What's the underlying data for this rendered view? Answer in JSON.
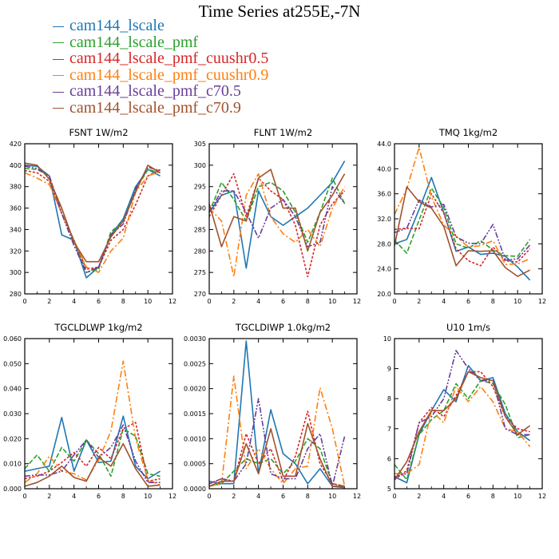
{
  "title": "Time Series at255E,-7N",
  "legend": [
    {
      "label": "cam144_lscale",
      "color": "#1f77b4"
    },
    {
      "label": "cam144_lscale_pmf",
      "color": "#2ca02c"
    },
    {
      "label": "cam144_lscale_pmf_cuushr0.5",
      "color": "#d62728"
    },
    {
      "label": "cam144_lscale_pmf_cuushr0.9",
      "color": "#ff7f0e"
    },
    {
      "label": "cam144_lscale_pmf_c70.5",
      "color": "#6a3d9a"
    },
    {
      "label": "cam144_lscale_pmf_c70.9",
      "color": "#a0522d"
    }
  ],
  "chart_data": [
    {
      "type": "line",
      "title": "FSNT   1W/m2",
      "x": [
        0,
        1,
        2,
        3,
        4,
        5,
        6,
        7,
        8,
        9,
        10,
        11
      ],
      "xlim": [
        0,
        12
      ],
      "xticks": [
        "0",
        "2",
        "4",
        "6",
        "8",
        "10",
        "12"
      ],
      "ylim": [
        280,
        420
      ],
      "yticks": [
        "280",
        "300",
        "320",
        "340",
        "360",
        "380",
        "400",
        "420"
      ],
      "series": [
        {
          "name": "cam144_lscale",
          "values": [
            400,
            399,
            390,
            335,
            330,
            295,
            305,
            335,
            350,
            380,
            396,
            390
          ]
        },
        {
          "name": "cam144_lscale_pmf",
          "values": [
            397,
            396,
            390,
            355,
            330,
            300,
            303,
            338,
            347,
            377,
            396,
            393
          ]
        },
        {
          "name": "cam144_lscale_pmf_cuushr0.5",
          "values": [
            395,
            393,
            385,
            355,
            330,
            303,
            305,
            330,
            340,
            363,
            390,
            396
          ]
        },
        {
          "name": "cam144_lscale_pmf_cuushr0.9",
          "values": [
            393,
            388,
            382,
            355,
            330,
            305,
            300,
            320,
            332,
            375,
            390,
            394
          ]
        },
        {
          "name": "cam144_lscale_pmf_c70.5",
          "values": [
            399,
            397,
            390,
            355,
            325,
            300,
            305,
            335,
            345,
            378,
            398,
            395
          ]
        },
        {
          "name": "cam144_lscale_pmf_c70.9",
          "values": [
            402,
            400,
            387,
            360,
            328,
            310,
            310,
            333,
            348,
            375,
            400,
            393
          ]
        }
      ]
    },
    {
      "type": "line",
      "title": "FLNT   1W/m2",
      "x": [
        0,
        1,
        2,
        3,
        4,
        5,
        6,
        7,
        8,
        9,
        10,
        11
      ],
      "xlim": [
        0,
        12
      ],
      "xticks": [
        "0",
        "2",
        "4",
        "6",
        "8",
        "10",
        "12"
      ],
      "ylim": [
        270,
        305
      ],
      "yticks": [
        "270",
        "275",
        "280",
        "285",
        "290",
        "295",
        "300",
        "305"
      ],
      "series": [
        {
          "name": "cam144_lscale",
          "values": [
            289,
            293,
            294,
            276,
            294,
            288,
            286,
            288,
            290,
            293,
            296,
            301
          ]
        },
        {
          "name": "cam144_lscale_pmf",
          "values": [
            289,
            296,
            292,
            287,
            295,
            296,
            294,
            289,
            282,
            289,
            297,
            291
          ]
        },
        {
          "name": "cam144_lscale_pmf_cuushr0.5",
          "values": [
            288,
            293,
            298,
            288,
            297,
            294,
            292,
            286,
            274,
            286,
            291,
            294
          ]
        },
        {
          "name": "cam144_lscale_pmf_cuushr0.9",
          "values": [
            290,
            287,
            274,
            293,
            298,
            288,
            284,
            282,
            285,
            281,
            290,
            295
          ]
        },
        {
          "name": "cam144_lscale_pmf_c70.5",
          "values": [
            289,
            294,
            294,
            289,
            283,
            290,
            292,
            288,
            281,
            282,
            295,
            291
          ]
        },
        {
          "name": "cam144_lscale_pmf_c70.9",
          "values": [
            291,
            281,
            288,
            287,
            297,
            299,
            290,
            290,
            280,
            289,
            293,
            298
          ]
        }
      ]
    },
    {
      "type": "line",
      "title": "TMQ   1kg/m2",
      "x": [
        0,
        1,
        2,
        3,
        4,
        5,
        6,
        7,
        8,
        9,
        10,
        11
      ],
      "xlim": [
        0,
        12
      ],
      "xticks": [
        "0",
        "2",
        "4",
        "6",
        "8",
        "10",
        "12"
      ],
      "ylim": [
        20,
        44
      ],
      "yticks": [
        "20.0",
        "24.0",
        "28.0",
        "32.0",
        "36.0",
        "40.0",
        "44.0"
      ],
      "series": [
        {
          "name": "cam144_lscale",
          "values": [
            28,
            28.7,
            33.5,
            38.6,
            33,
            26.8,
            27.5,
            26.3,
            26.5,
            26,
            24.3,
            22.2
          ]
        },
        {
          "name": "cam144_lscale_pmf",
          "values": [
            28.6,
            26.5,
            31.8,
            36.9,
            33.8,
            28,
            27.3,
            28.5,
            27,
            26.1,
            26,
            28.7
          ]
        },
        {
          "name": "cam144_lscale_pmf_cuushr0.5",
          "values": [
            30.3,
            30.5,
            30.4,
            36,
            32.9,
            27.2,
            25.3,
            24.5,
            27.5,
            25.3,
            25.1,
            27.2
          ]
        },
        {
          "name": "cam144_lscale_pmf_cuushr0.9",
          "values": [
            32.7,
            36.8,
            43.4,
            35.5,
            31,
            29.2,
            27.5,
            27.7,
            28.5,
            24.7,
            24.8,
            25.6
          ]
        },
        {
          "name": "cam144_lscale_pmf_c70.5",
          "values": [
            29.8,
            30.5,
            35,
            33.9,
            34.3,
            29.1,
            28.1,
            28,
            31.1,
            25.4,
            25.6,
            27.8
          ]
        },
        {
          "name": "cam144_lscale_pmf_c70.9",
          "values": [
            27.7,
            37.1,
            34.7,
            33.7,
            30.8,
            24.5,
            26.9,
            26.8,
            26.9,
            24.2,
            22.8,
            23.8
          ]
        }
      ]
    },
    {
      "type": "line",
      "title": "TGCLDLWP   1kg/m2",
      "x": [
        0,
        1,
        2,
        3,
        4,
        5,
        6,
        7,
        8,
        9,
        10,
        11
      ],
      "xlim": [
        0,
        12
      ],
      "xticks": [
        "0",
        "2",
        "4",
        "6",
        "8",
        "10",
        "12"
      ],
      "ylim": [
        0,
        0.06
      ],
      "yticks": [
        "0.000",
        "0.010",
        "0.020",
        "0.030",
        "0.040",
        "0.050",
        "0.060"
      ],
      "series": [
        {
          "name": "cam144_lscale",
          "values": [
            0.007,
            0.008,
            0.009,
            0.0285,
            0.007,
            0.0195,
            0.0105,
            0.011,
            0.029,
            0.009,
            0.004,
            0.007
          ]
        },
        {
          "name": "cam144_lscale_pmf",
          "values": [
            0.008,
            0.0135,
            0.007,
            0.0165,
            0.011,
            0.0195,
            0.014,
            0.005,
            0.024,
            0.021,
            0.006,
            0.005
          ]
        },
        {
          "name": "cam144_lscale_pmf_cuushr0.5",
          "values": [
            0.004,
            0.005,
            0.007,
            0.0105,
            0.0145,
            0.009,
            0.0165,
            0.012,
            0.024,
            0.0265,
            0.003,
            0.004
          ]
        },
        {
          "name": "cam144_lscale_pmf_cuushr0.9",
          "values": [
            0.0025,
            0.006,
            0.013,
            0.007,
            0.006,
            0.0035,
            0.0115,
            0.023,
            0.051,
            0.02,
            0.0035,
            0.0015
          ]
        },
        {
          "name": "cam144_lscale_pmf_c70.5",
          "values": [
            0.005,
            0.0055,
            0.0055,
            0.007,
            0.0135,
            0.0195,
            0.0125,
            0.0165,
            0.0255,
            0.011,
            0.0025,
            0.0025
          ]
        },
        {
          "name": "cam144_lscale_pmf_c70.9",
          "values": [
            0.001,
            0.0025,
            0.005,
            0.009,
            0.0045,
            0.003,
            0.0125,
            0.009,
            0.018,
            0.008,
            0.001,
            0.0015
          ]
        }
      ]
    },
    {
      "type": "line",
      "title": "TGCLDIWP   1.0kg/m2",
      "x": [
        0,
        1,
        2,
        3,
        4,
        5,
        6,
        7,
        8,
        9,
        10,
        11
      ],
      "xlim": [
        0,
        12
      ],
      "xticks": [
        "0",
        "2",
        "4",
        "6",
        "8",
        "10",
        "12"
      ],
      "ylim": [
        0,
        0.003
      ],
      "yticks": [
        "0.0000",
        "0.0005",
        "0.0010",
        "0.0015",
        "0.0020",
        "0.0025",
        "0.0030"
      ],
      "series": [
        {
          "name": "cam144_lscale",
          "values": [
            0.00015,
            0.0001,
            0.0001,
            0.00295,
            0.0003,
            0.00158,
            0.0007,
            0.0005,
            0.0001,
            0.0004,
            5e-05,
            2e-05
          ]
        },
        {
          "name": "cam144_lscale_pmf",
          "values": [
            5e-05,
            0.0001,
            0.00035,
            0.0006,
            0.0005,
            0.0006,
            0.0003,
            0.00055,
            0.001,
            0.0008,
            0.0001,
            5e-05
          ]
        },
        {
          "name": "cam144_lscale_pmf_cuushr0.5",
          "values": [
            0.0001,
            0.0002,
            0.00015,
            0.0011,
            0.0005,
            0.0008,
            0.00015,
            0.00065,
            0.00155,
            0.0005,
            0.0001,
            5e-05
          ]
        },
        {
          "name": "cam144_lscale_pmf_cuushr0.9",
          "values": [
            5e-05,
            0.0001,
            0.00225,
            0.0004,
            0.0008,
            0.0004,
            0.0001,
            0.0004,
            0.00045,
            0.00202,
            0.0012,
            5e-05
          ]
        },
        {
          "name": "cam144_lscale_pmf_c70.5",
          "values": [
            0.0001,
            0.0002,
            0.00015,
            0.0005,
            0.0018,
            0.0003,
            0.0002,
            0.0002,
            0.0008,
            0.0011,
            5e-05,
            0.00105
          ]
        },
        {
          "name": "cam144_lscale_pmf_c70.9",
          "values": [
            5e-05,
            0.00015,
            0.00015,
            0.0009,
            0.0003,
            0.0012,
            0.00025,
            0.00025,
            0.0013,
            0.0006,
            5e-05,
            5e-05
          ]
        }
      ]
    },
    {
      "type": "line",
      "title": "U10   1m/s",
      "x": [
        0,
        1,
        2,
        3,
        4,
        5,
        6,
        7,
        8,
        9,
        10,
        11
      ],
      "xlim": [
        0,
        12
      ],
      "xticks": [
        "0",
        "2",
        "4",
        "6",
        "8",
        "10",
        "12"
      ],
      "ylim": [
        5,
        10
      ],
      "yticks": [
        "5",
        "6",
        "7",
        "8",
        "9",
        "10"
      ],
      "series": [
        {
          "name": "cam144_lscale",
          "values": [
            5.4,
            5.2,
            6.8,
            7.6,
            8.3,
            7.9,
            9.1,
            8.6,
            8.7,
            7.5,
            6.9,
            6.6
          ]
        },
        {
          "name": "cam144_lscale_pmf",
          "values": [
            5.8,
            5.3,
            6.8,
            7.3,
            7.6,
            8.5,
            8.0,
            8.6,
            8.5,
            7.8,
            6.7,
            6.8
          ]
        },
        {
          "name": "cam144_lscale_pmf_cuushr0.5",
          "values": [
            5.3,
            5.6,
            7.2,
            7.7,
            7.4,
            8.1,
            8.9,
            8.9,
            8.4,
            7.4,
            7.0,
            6.9
          ]
        },
        {
          "name": "cam144_lscale_pmf_cuushr0.9",
          "values": [
            5.5,
            5.5,
            5.8,
            7.6,
            7.2,
            8.4,
            7.9,
            8.4,
            7.9,
            7.0,
            6.9,
            6.4
          ]
        },
        {
          "name": "cam144_lscale_pmf_c70.5",
          "values": [
            5.4,
            5.5,
            7.2,
            7.4,
            8.0,
            9.6,
            9.0,
            8.6,
            8.6,
            7.0,
            6.8,
            6.8
          ]
        },
        {
          "name": "cam144_lscale_pmf_c70.9",
          "values": [
            5.3,
            5.9,
            6.9,
            7.6,
            7.6,
            8.0,
            8.9,
            8.7,
            8.6,
            7.4,
            6.8,
            7.1
          ]
        }
      ]
    }
  ]
}
